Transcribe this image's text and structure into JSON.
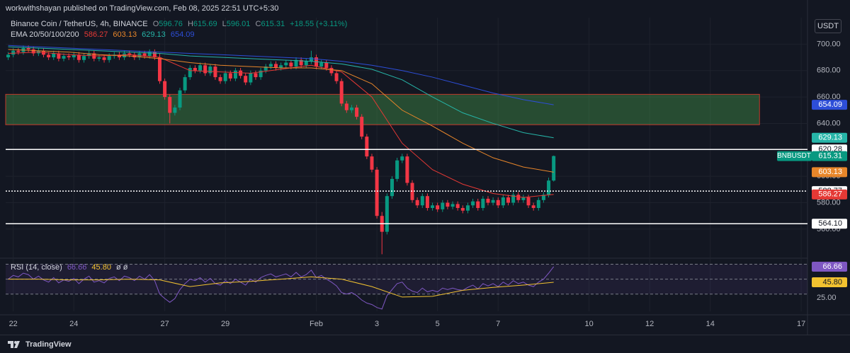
{
  "header": {
    "publisher": "workwithshayan published on TradingView.com, Feb 08, 2025 22:51 UTC+5:30",
    "symbol": "Binance Coin / TetherUS, 4h, BINANCE",
    "ohlc_keys": [
      "O",
      "H",
      "L",
      "C"
    ],
    "change": "+18.55 (+3.11%)",
    "ema_label": "EMA 20/50/100/200",
    "rsi_label": "RSI (14, close)",
    "rsi_extra": "ø ø"
  },
  "currency": "USDT",
  "symbol_badge": "BNBUSDT",
  "footer": "TradingView",
  "chart_data": [
    {
      "type": "candlestick",
      "up_color": "#089981",
      "down_color": "#f23645",
      "xlim": [
        -6,
        629
      ],
      "xticks": [
        {
          "value": 0,
          "label": "22"
        },
        {
          "value": 48,
          "label": "24"
        },
        {
          "value": 120,
          "label": "27"
        },
        {
          "value": 168,
          "label": "29"
        },
        {
          "value": 240,
          "label": "Feb"
        },
        {
          "value": 288,
          "label": "3"
        },
        {
          "value": 336,
          "label": "5"
        },
        {
          "value": 384,
          "label": "7"
        },
        {
          "value": 456,
          "label": "10"
        },
        {
          "value": 504,
          "label": "12"
        },
        {
          "value": 552,
          "label": "14"
        },
        {
          "value": 624,
          "label": "17"
        }
      ],
      "ylim": [
        538,
        720
      ],
      "yticks": [
        {
          "value": 560,
          "label": "560.00"
        },
        {
          "value": 580,
          "label": "580.00"
        },
        {
          "value": 600,
          "label": "600.00"
        },
        {
          "value": 620,
          "label": "620.00"
        },
        {
          "value": 640,
          "label": "640.00"
        },
        {
          "value": 660,
          "label": "660.00"
        },
        {
          "value": 680,
          "label": "680.00"
        },
        {
          "value": 700,
          "label": "700.00"
        }
      ],
      "x": [
        -4,
        0,
        4,
        8,
        12,
        16,
        20,
        24,
        28,
        32,
        36,
        40,
        44,
        48,
        52,
        56,
        60,
        64,
        68,
        72,
        76,
        80,
        84,
        88,
        92,
        96,
        100,
        104,
        108,
        112,
        116,
        120,
        124,
        128,
        132,
        136,
        140,
        144,
        148,
        152,
        156,
        160,
        164,
        168,
        172,
        176,
        180,
        184,
        188,
        192,
        196,
        200,
        204,
        208,
        212,
        216,
        220,
        224,
        228,
        232,
        236,
        240,
        244,
        248,
        252,
        256,
        260,
        264,
        268,
        272,
        276,
        280,
        284,
        288,
        292,
        296,
        300,
        304,
        308,
        312,
        316,
        320,
        324,
        328,
        332,
        336,
        340,
        344,
        348,
        352,
        356,
        360,
        364,
        368,
        372,
        376,
        380,
        384,
        388,
        392,
        396,
        400,
        404,
        408,
        412,
        416,
        420,
        424,
        428
      ],
      "open": [
        690,
        692,
        695,
        694,
        697,
        696,
        693,
        695,
        692,
        690,
        693,
        689,
        691,
        690,
        692,
        688,
        691,
        693,
        689,
        690,
        688,
        691,
        692,
        690,
        693,
        692,
        690,
        693,
        691,
        694,
        690,
        672,
        660,
        648,
        652,
        665,
        675,
        682,
        680,
        684,
        678,
        683,
        675,
        672,
        678,
        674,
        680,
        676,
        671,
        678,
        675,
        680,
        683,
        685,
        682,
        684,
        686,
        683,
        688,
        684,
        687,
        690,
        683,
        686,
        682,
        678,
        672,
        655,
        650,
        652,
        645,
        630,
        615,
        605,
        570,
        558,
        585,
        598,
        612,
        615,
        595,
        582,
        578,
        585,
        576,
        578,
        575,
        580,
        577,
        579,
        576,
        574,
        578,
        581,
        576,
        583,
        580,
        582,
        578,
        584,
        580,
        586,
        582,
        584,
        578,
        576,
        582,
        586,
        596.76
      ],
      "high": [
        694,
        697,
        697,
        699,
        699,
        698,
        697,
        697,
        694,
        695,
        695,
        693,
        693,
        694,
        694,
        693,
        695,
        695,
        692,
        692,
        693,
        694,
        694,
        695,
        695,
        694,
        695,
        695,
        696,
        696,
        693,
        674,
        662,
        654,
        667,
        677,
        684,
        684,
        686,
        686,
        685,
        685,
        677,
        680,
        680,
        682,
        682,
        678,
        680,
        680,
        682,
        685,
        687,
        687,
        686,
        688,
        688,
        690,
        690,
        689,
        695,
        692,
        688,
        688,
        684,
        680,
        674,
        657,
        654,
        654,
        647,
        632,
        617,
        607,
        573,
        587,
        600,
        614,
        617,
        617,
        597,
        584,
        587,
        587,
        580,
        580,
        582,
        582,
        581,
        581,
        578,
        580,
        583,
        583,
        585,
        585,
        584,
        584,
        586,
        586,
        588,
        588,
        586,
        586,
        580,
        584,
        588,
        599,
        615.69
      ],
      "low": [
        688,
        690,
        692,
        692,
        694,
        691,
        691,
        690,
        688,
        688,
        687,
        687,
        688,
        688,
        686,
        686,
        689,
        687,
        687,
        686,
        686,
        689,
        688,
        688,
        690,
        688,
        688,
        689,
        689,
        688,
        670,
        658,
        640,
        646,
        650,
        663,
        673,
        678,
        678,
        676,
        676,
        673,
        670,
        670,
        672,
        672,
        674,
        669,
        669,
        673,
        673,
        678,
        681,
        680,
        680,
        682,
        681,
        681,
        682,
        682,
        685,
        681,
        681,
        680,
        676,
        670,
        653,
        648,
        648,
        643,
        628,
        613,
        603,
        568,
        541,
        556,
        583,
        596,
        610,
        593,
        580,
        576,
        576,
        574,
        574,
        573,
        573,
        575,
        575,
        574,
        572,
        572,
        576,
        574,
        574,
        578,
        578,
        576,
        576,
        578,
        578,
        580,
        580,
        576,
        574,
        574,
        580,
        584,
        596.01
      ],
      "close": [
        692,
        695,
        694,
        697,
        696,
        693,
        695,
        692,
        690,
        693,
        689,
        691,
        690,
        692,
        688,
        691,
        693,
        689,
        690,
        688,
        691,
        692,
        690,
        693,
        692,
        690,
        693,
        691,
        694,
        690,
        672,
        660,
        648,
        652,
        665,
        675,
        682,
        680,
        684,
        678,
        683,
        675,
        672,
        678,
        674,
        680,
        676,
        671,
        678,
        675,
        680,
        683,
        685,
        682,
        684,
        686,
        683,
        688,
        684,
        687,
        690,
        683,
        686,
        682,
        678,
        672,
        655,
        650,
        652,
        645,
        630,
        615,
        605,
        570,
        558,
        585,
        598,
        612,
        615,
        595,
        582,
        578,
        585,
        576,
        578,
        575,
        580,
        577,
        579,
        576,
        574,
        578,
        581,
        576,
        583,
        580,
        582,
        578,
        584,
        580,
        586,
        582,
        584,
        578,
        576,
        582,
        586,
        596.76,
        615.31
      ],
      "ema_x": [
        -4,
        20,
        44,
        68,
        92,
        116,
        140,
        164,
        188,
        212,
        236,
        260,
        284,
        308,
        332,
        356,
        380,
        404,
        428
      ],
      "lines": [
        {
          "color": "#e53935",
          "values": [
            693,
            694,
            692,
            691,
            692,
            690,
            680,
            679,
            678,
            681,
            684,
            679,
            660,
            625,
            605,
            594,
            587,
            584,
            586.27
          ]
        },
        {
          "color": "#e8862a",
          "values": [
            696,
            695,
            694,
            692,
            691,
            689,
            686,
            684,
            683,
            682,
            682,
            680,
            670,
            650,
            638,
            625,
            614,
            607,
            603.13
          ]
        },
        {
          "color": "#26b5a8",
          "values": [
            698,
            697,
            696,
            695,
            694,
            693,
            691,
            690,
            689,
            688,
            687,
            685,
            681,
            673,
            660,
            648,
            640,
            633,
            629.13
          ]
        },
        {
          "color": "#2d4ed8",
          "values": [
            699,
            698,
            697,
            696,
            695,
            694,
            693,
            692,
            691,
            690,
            689,
            687,
            684,
            680,
            675,
            669,
            663,
            658,
            654.09
          ]
        }
      ],
      "zone": {
        "low": 639,
        "high": 662,
        "x_end": 591
      },
      "hlines": [
        {
          "value": 620.28,
          "style": "solid"
        },
        {
          "value": 588.77,
          "style": "dotted"
        },
        {
          "value": 564.1,
          "label": "564.10",
          "style": "solid"
        }
      ]
    },
    {
      "type": "rsi",
      "color": "#7e57c2",
      "ylim": [
        7,
        78
      ],
      "yticks": [
        {
          "value": 25,
          "label": "25.00"
        }
      ],
      "levels": [
        70,
        50,
        30
      ],
      "values": [
        50,
        55,
        53,
        58,
        56,
        50,
        54,
        49,
        46,
        52,
        45,
        49,
        47,
        51,
        44,
        50,
        54,
        46,
        48,
        45,
        51,
        53,
        48,
        54,
        52,
        48,
        54,
        50,
        56,
        48,
        30,
        24,
        19,
        24,
        36,
        44,
        50,
        48,
        52,
        46,
        51,
        44,
        42,
        48,
        44,
        50,
        46,
        42,
        50,
        46,
        52,
        55,
        57,
        53,
        55,
        57,
        53,
        59,
        53,
        56,
        62,
        52,
        55,
        50,
        46,
        41,
        32,
        30,
        32,
        28,
        22,
        18,
        16,
        12,
        10,
        28,
        36,
        44,
        46,
        38,
        34,
        32,
        38,
        33,
        35,
        33,
        38,
        36,
        38,
        36,
        35,
        39,
        42,
        37,
        44,
        41,
        44,
        40,
        46,
        42,
        48,
        44,
        46,
        42,
        40,
        46,
        50,
        58,
        66.66
      ],
      "ma": {
        "color": "#f2c230",
        "values": [
          50,
          50,
          49,
          49,
          50,
          49,
          40,
          45,
          47,
          50,
          53,
          50,
          40,
          26,
          27,
          35,
          39,
          42,
          45.8
        ],
        "value_labels": [
          null,
          null,
          null,
          null,
          null,
          null,
          null,
          null,
          null,
          null,
          null,
          null,
          null,
          null,
          null,
          null,
          null,
          null,
          "45.80"
        ]
      }
    }
  ]
}
